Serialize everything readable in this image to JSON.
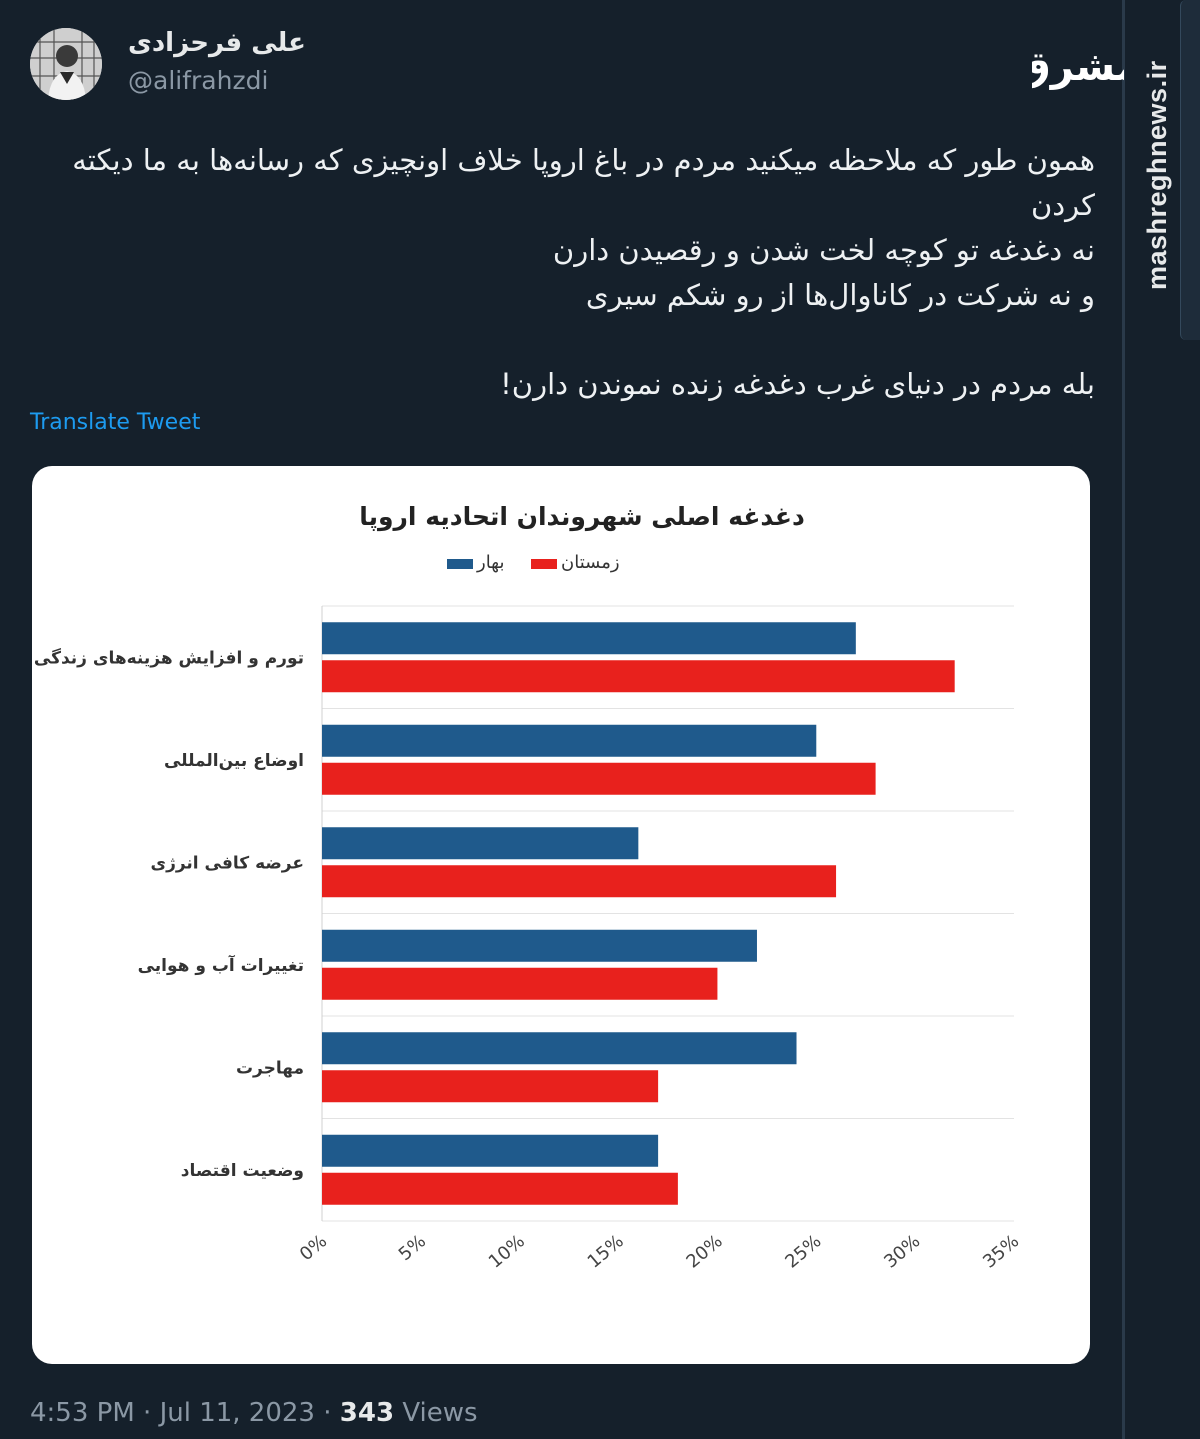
{
  "author": {
    "display_name": "علی فرحزادی",
    "handle": "@alifrahzdi"
  },
  "watermark": {
    "logo_text": "مشرق",
    "site": "mashreghnews.ir"
  },
  "tweet": {
    "lines": [
      "همون طور که ملاحظه میکنید مردم در باغ اروپا خلاف اونچیزی که رسانه‌ها به ما دیکته کردن",
      "نه دغدغه تو کوچه لخت شدن و رقصیدن دارن",
      "و نه شرکت در کاناوال‌ها از رو شکم سیری",
      "بله مردم در دنیای غرب دغدغه زنده نموندن دارن!"
    ],
    "translate_label": "Translate Tweet"
  },
  "meta": {
    "time": "4:53 PM",
    "date": "Jul 11, 2023",
    "views_count": "343",
    "views_label": "Views",
    "separator": "·"
  },
  "colors": {
    "spring": "#1f5a8c",
    "winter": "#e8211d"
  },
  "chart_data": {
    "type": "bar",
    "orientation": "horizontal",
    "title": "دغدغه اصلی شهروندان اتحادیه اروپا",
    "categories": [
      "تورم و افزایش هزینه‌های زندگی",
      "اوضاع بین‌المللی",
      "عرضه کافی انرژی",
      "تغییرات آب و هوایی",
      "مهاجرت",
      "وضعیت اقتصاد"
    ],
    "series": [
      {
        "name": "بهار",
        "values": [
          27,
          25,
          16,
          22,
          24,
          17
        ]
      },
      {
        "name": "زمستان",
        "values": [
          32,
          28,
          26,
          20,
          17,
          18
        ]
      }
    ],
    "xlim": [
      0,
      35
    ],
    "xticks": [
      "0%",
      "5%",
      "10%",
      "15%",
      "20%",
      "25%",
      "30%",
      "35%"
    ],
    "grid": true,
    "legend_position": "top"
  }
}
